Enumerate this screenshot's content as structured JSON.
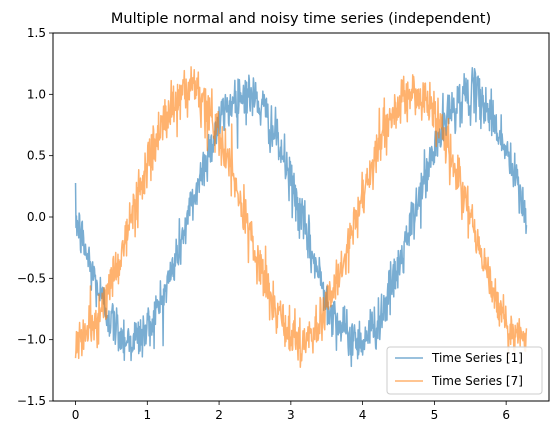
{
  "chart_data": {
    "type": "line",
    "title": "Multiple normal and noisy time series (independent)",
    "xlabel": "",
    "ylabel": "",
    "xlim": [
      -0.314,
      6.597
    ],
    "ylim": [
      -1.5,
      1.5
    ],
    "x_ticks": [
      0,
      1,
      2,
      3,
      4,
      5,
      6
    ],
    "x_tick_labels": [
      "0",
      "1",
      "2",
      "3",
      "4",
      "5",
      "6"
    ],
    "y_ticks": [
      -1.5,
      -1.0,
      -0.5,
      0.0,
      0.5,
      1.0,
      1.5
    ],
    "y_tick_labels": [
      "−1.5",
      "−1.0",
      "−0.5",
      "0.0",
      "0.5",
      "1.0",
      "1.5"
    ],
    "grid": false,
    "legend_position": "lower-right",
    "x_range": [
      0,
      6.283
    ],
    "series": [
      {
        "name": "Time Series [1]",
        "color": "#1f77b4",
        "opacity": 0.6,
        "noise_amplitude": 0.1,
        "x": [
          0,
          0.393,
          0.785,
          1.178,
          1.571,
          1.963,
          2.356,
          2.749,
          3.142,
          3.534,
          3.927,
          4.32,
          4.712,
          5.105,
          5.498,
          5.89,
          6.283
        ],
        "y": [
          0.0,
          -0.71,
          -1.0,
          -0.71,
          0.0,
          0.71,
          1.0,
          0.71,
          0.0,
          -0.71,
          -1.0,
          -0.71,
          0.0,
          0.71,
          1.0,
          0.71,
          0.0
        ]
      },
      {
        "name": "Time Series [7]",
        "color": "#ff7f0e",
        "opacity": 0.6,
        "noise_amplitude": 0.1,
        "x": [
          0,
          0.393,
          0.785,
          1.178,
          1.571,
          1.963,
          2.356,
          2.749,
          3.142,
          3.534,
          3.927,
          4.32,
          4.712,
          5.105,
          5.498,
          5.89,
          6.283
        ],
        "y": [
          -1.0,
          -0.71,
          0.0,
          0.71,
          1.0,
          0.71,
          0.0,
          -0.71,
          -1.0,
          -0.71,
          0.0,
          0.71,
          1.0,
          0.71,
          0.0,
          -0.71,
          -1.0
        ]
      }
    ]
  }
}
